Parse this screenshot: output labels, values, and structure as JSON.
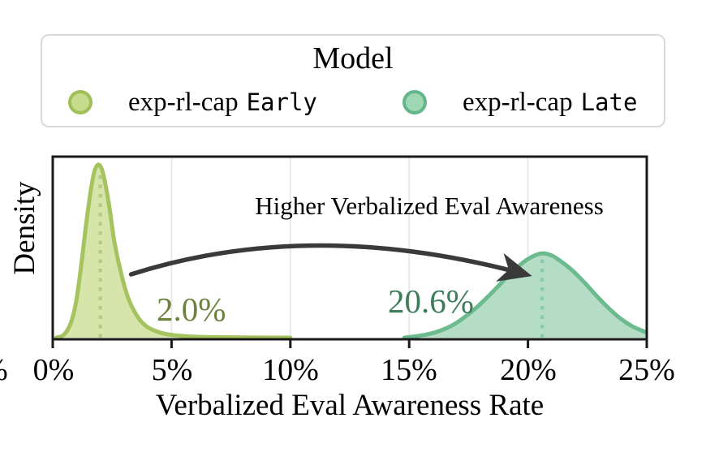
{
  "legend": {
    "title": "Model",
    "entries": [
      {
        "name_serif": "exp-rl-cap",
        "name_mono": "Early",
        "marker_fill": "#c7db8c",
        "marker_border": "#a0bf56"
      },
      {
        "name_serif": "exp-rl-cap",
        "name_mono": "Late",
        "marker_fill": "#9fd7b5",
        "marker_border": "#63b689"
      }
    ]
  },
  "annotation": {
    "text": "Higher Verbalized Eval Awareness"
  },
  "mode_labels": {
    "early": "2.0%",
    "late": "20.6%"
  },
  "axes": {
    "xlabel": "Verbalized Eval Awareness Rate",
    "ylabel": "Density",
    "x_ticks": [
      "0%",
      "5%",
      "10%",
      "15%",
      "20%",
      "25%"
    ],
    "clipped_left_fragment": "%"
  },
  "chart_data": {
    "type": "area",
    "subtype": "kde-density",
    "title": "",
    "xlabel": "Verbalized Eval Awareness Rate",
    "ylabel": "Density",
    "xlim_pct": [
      0,
      25
    ],
    "x_tick_pcts": [
      0,
      5,
      10,
      15,
      20,
      25
    ],
    "x_tick_labels": [
      "0%",
      "5%",
      "10%",
      "15%",
      "20%",
      "25%"
    ],
    "grid": "vertical gridlines at 5% steps",
    "grid_color": "#e9e9e9",
    "axis_color": "#1a1a1a",
    "arrow_color": "#3a3a3a",
    "legend_title": "Model",
    "legend_position": "top",
    "series": [
      {
        "name": "exp-rl-cap Early",
        "mode_pct": 2.0,
        "mode_label": "2.0%",
        "stroke": "#a5c35e",
        "fill": "#d6e5aa",
        "dot_color": "#b9cb82",
        "label_color": "#6e823f",
        "points_pct_density": [
          [
            0.15,
            0
          ],
          [
            0.4,
            0.01
          ],
          [
            0.6,
            0.04
          ],
          [
            0.8,
            0.1
          ],
          [
            1.0,
            0.22
          ],
          [
            1.2,
            0.42
          ],
          [
            1.4,
            0.65
          ],
          [
            1.6,
            0.85
          ],
          [
            1.75,
            0.96
          ],
          [
            1.9,
            1.0
          ],
          [
            2.05,
            0.98
          ],
          [
            2.2,
            0.9
          ],
          [
            2.4,
            0.74
          ],
          [
            2.6,
            0.55
          ],
          [
            2.9,
            0.36
          ],
          [
            3.2,
            0.22
          ],
          [
            3.6,
            0.115
          ],
          [
            4.0,
            0.06
          ],
          [
            4.5,
            0.03
          ],
          [
            5.0,
            0.016
          ],
          [
            5.6,
            0.008
          ],
          [
            6.5,
            0.003
          ],
          [
            8.0,
            0.001
          ],
          [
            10.0,
            0
          ]
        ]
      },
      {
        "name": "exp-rl-cap Late",
        "mode_pct": 20.6,
        "mode_label": "20.6%",
        "stroke": "#6cbb8e",
        "fill": "#b5ddc5",
        "dot_color": "#8accaa",
        "label_color": "#3f7c5b",
        "points_pct_density": [
          [
            14.8,
            0
          ],
          [
            15.3,
            0.008
          ],
          [
            15.8,
            0.02
          ],
          [
            16.3,
            0.04
          ],
          [
            16.8,
            0.07
          ],
          [
            17.3,
            0.115
          ],
          [
            17.8,
            0.17
          ],
          [
            18.3,
            0.235
          ],
          [
            18.8,
            0.305
          ],
          [
            19.3,
            0.375
          ],
          [
            19.8,
            0.435
          ],
          [
            20.2,
            0.47
          ],
          [
            20.6,
            0.487
          ],
          [
            21.0,
            0.475
          ],
          [
            21.4,
            0.44
          ],
          [
            21.9,
            0.385
          ],
          [
            22.4,
            0.315
          ],
          [
            22.9,
            0.24
          ],
          [
            23.4,
            0.17
          ],
          [
            23.9,
            0.11
          ],
          [
            24.4,
            0.065
          ],
          [
            24.9,
            0.035
          ],
          [
            25.0,
            0.03
          ]
        ]
      }
    ],
    "annotations": [
      {
        "type": "arrow-text",
        "text": "Higher Verbalized Eval Awareness",
        "arrow_from_pct": 3.3,
        "arrow_to_pct": 19.9
      }
    ]
  }
}
